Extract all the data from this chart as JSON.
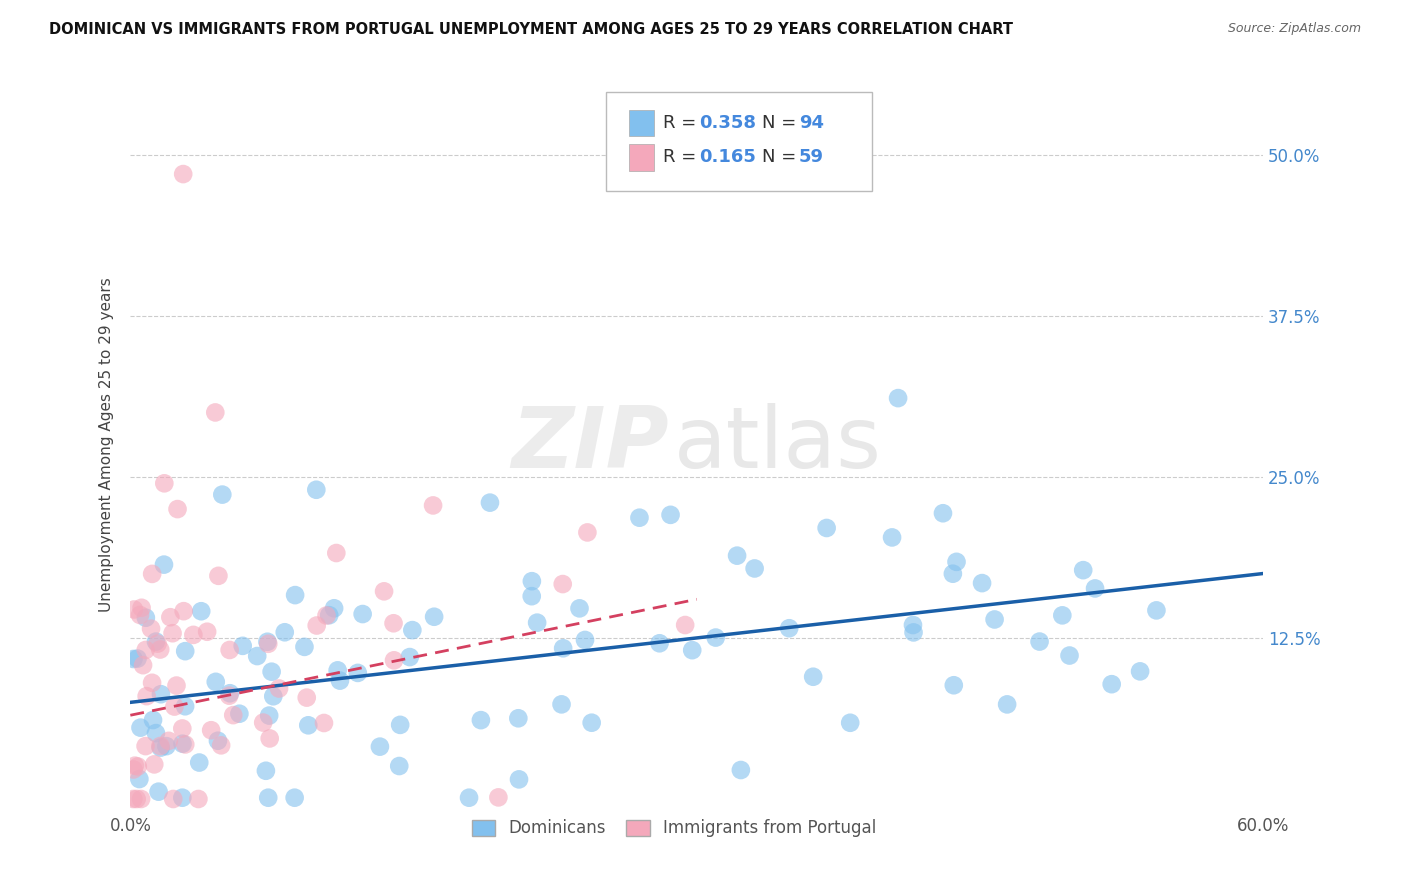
{
  "title": "DOMINICAN VS IMMIGRANTS FROM PORTUGAL UNEMPLOYMENT AMONG AGES 25 TO 29 YEARS CORRELATION CHART",
  "source": "Source: ZipAtlas.com",
  "ylabel": "Unemployment Among Ages 25 to 29 years",
  "ytick_labels": [
    "50.0%",
    "37.5%",
    "25.0%",
    "12.5%"
  ],
  "ytick_values": [
    0.5,
    0.375,
    0.25,
    0.125
  ],
  "xlim": [
    0.0,
    0.6
  ],
  "ylim": [
    -0.01,
    0.56
  ],
  "blue_color": "#82C0EE",
  "pink_color": "#F4A8BB",
  "trend_blue": "#1A5FA8",
  "trend_pink": "#D44060",
  "trend_pink_dash": true,
  "watermark_zip": "ZIP",
  "watermark_atlas": "atlas",
  "seed": 42,
  "n_blue": 94,
  "n_pink": 59,
  "r_blue": 0.358,
  "r_pink": 0.165,
  "blue_trend_x0": 0.0,
  "blue_trend_y0": 0.075,
  "blue_trend_x1": 0.6,
  "blue_trend_y1": 0.175,
  "pink_trend_x0": 0.0,
  "pink_trend_y0": 0.065,
  "pink_trend_x1": 0.3,
  "pink_trend_y1": 0.155
}
